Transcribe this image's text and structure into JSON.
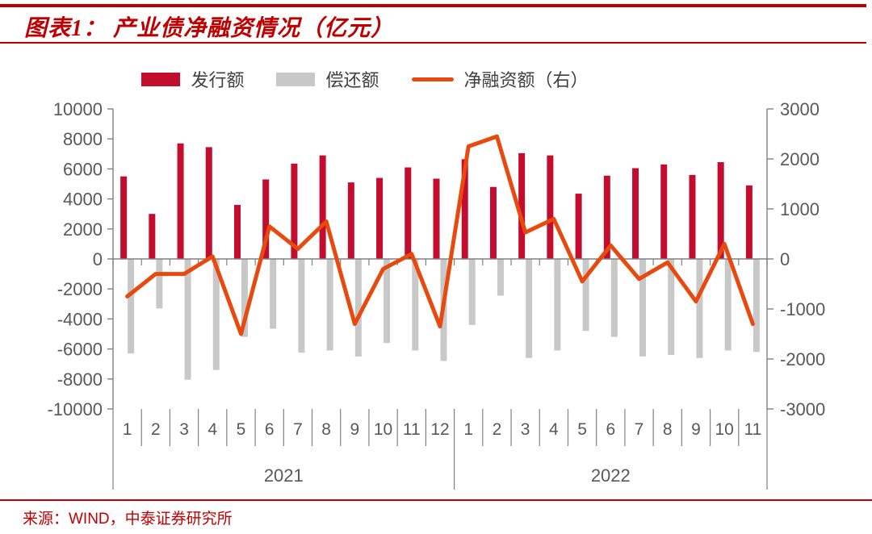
{
  "header": {
    "title": "图表1： 产业债净融资情况（亿元）"
  },
  "footer": {
    "source": "来源：WIND，中泰证券研究所"
  },
  "style": {
    "accent_red": "#c00000",
    "axis_text_color": "#595959",
    "axis_line_color": "#808080"
  },
  "chart_data": {
    "type": "bar",
    "title": "产业债净融资情况（亿元）",
    "grid": false,
    "legend_position": "top",
    "categories": [
      "1",
      "2",
      "3",
      "4",
      "5",
      "6",
      "7",
      "8",
      "9",
      "10",
      "11",
      "12",
      "1",
      "2",
      "3",
      "4",
      "5",
      "6",
      "7",
      "8",
      "9",
      "10",
      "11"
    ],
    "category_groups": [
      {
        "label": "2021",
        "count": 12
      },
      {
        "label": "2022",
        "count": 11
      }
    ],
    "left_axis": {
      "min": -10000,
      "max": 10000,
      "step": 2000
    },
    "right_axis": {
      "min": -3000,
      "max": 3000,
      "step": 1000
    },
    "series": [
      {
        "name": "发行额",
        "type": "bar",
        "axis": "left",
        "color": "#c30d2e",
        "values": [
          5500,
          3000,
          7700,
          7450,
          3600,
          5300,
          6350,
          6900,
          5100,
          5400,
          6100,
          5350,
          6650,
          4800,
          7050,
          6900,
          4350,
          5550,
          6050,
          6300,
          5600,
          6450,
          4900
        ]
      },
      {
        "name": "偿还额",
        "type": "bar",
        "axis": "left",
        "color": "#c8c8c8",
        "values": [
          -6300,
          -3300,
          -8050,
          -7400,
          -5200,
          -4650,
          -6250,
          -6100,
          -6500,
          -5600,
          -6100,
          -6800,
          -4400,
          -2450,
          -6600,
          -6100,
          -4800,
          -5200,
          -6500,
          -6400,
          -6600,
          -6100,
          -6200
        ]
      },
      {
        "name": "净融资额（右）",
        "type": "line",
        "axis": "right",
        "color": "#e8490e",
        "values": [
          -750,
          -300,
          -300,
          50,
          -1500,
          650,
          200,
          750,
          -1300,
          -200,
          100,
          -1350,
          2250,
          2450,
          530,
          800,
          -450,
          270,
          -400,
          -70,
          -850,
          300,
          -1300
        ]
      }
    ]
  }
}
